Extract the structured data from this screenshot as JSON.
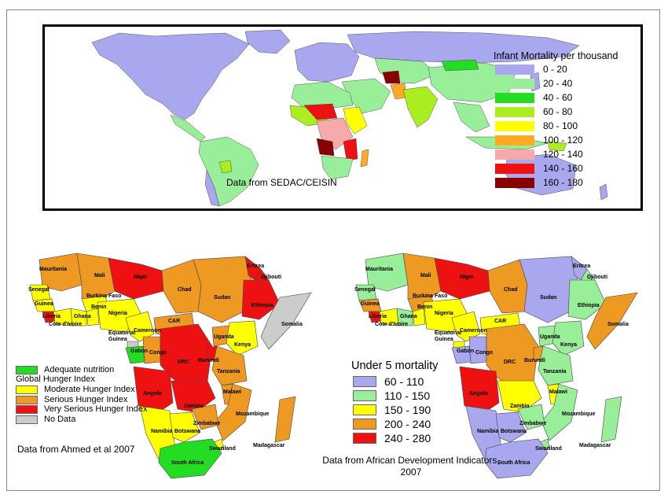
{
  "world_map": {
    "legend_title": "Infant Mortality per thousand",
    "legend": [
      {
        "label": "0 - 20",
        "color": "#a9a7ee"
      },
      {
        "label": "20 - 40",
        "color": "#99ee99"
      },
      {
        "label": "40 - 60",
        "color": "#22dd22"
      },
      {
        "label": "60 - 80",
        "color": "#aaee22"
      },
      {
        "label": "80 - 100",
        "color": "#ffff00"
      },
      {
        "label": "100 - 120",
        "color": "#ffaa22"
      },
      {
        "label": "120 - 140",
        "color": "#f7aaaa"
      },
      {
        "label": "140 - 160",
        "color": "#ee1111"
      },
      {
        "label": "160 - 180",
        "color": "#880000"
      }
    ],
    "source": "Data from SEDAC/CEISIN"
  },
  "hunger_map": {
    "legend": [
      {
        "label": "Adequate nutrition",
        "color": "#22dd22"
      },
      {
        "label": "Global Hunger Index",
        "color": null
      },
      {
        "label": "Moderate Hunger Index",
        "color": "#ffff00"
      },
      {
        "label": "Serious Hunger Index",
        "color": "#ee9922"
      },
      {
        "label": "Very Serious Hunger Index",
        "color": "#ee1111"
      },
      {
        "label": "No Data",
        "color": "#cccccc"
      }
    ],
    "source": "Data from Ahmed et al 2007",
    "countries": [
      {
        "name": "Mauritania",
        "color": "#ee9922"
      },
      {
        "name": "Mali",
        "color": "#ee9922"
      },
      {
        "name": "Niger",
        "color": "#ee1111"
      },
      {
        "name": "Chad",
        "color": "#ee9922"
      },
      {
        "name": "Sudan",
        "color": "#ee9922"
      },
      {
        "name": "Eritrea",
        "color": "#ee1111"
      },
      {
        "name": "Djibouti",
        "color": "#ee1111"
      },
      {
        "name": "Ethiopia",
        "color": "#ee1111"
      },
      {
        "name": "Somalia",
        "color": "#cccccc"
      },
      {
        "name": "Senegal",
        "color": "#ffff00"
      },
      {
        "name": "Guinea",
        "color": "#ffff00"
      },
      {
        "name": "Liberia",
        "color": "#ee1111"
      },
      {
        "name": "Burkina Faso",
        "color": "#ffff00"
      },
      {
        "name": "Benin",
        "color": "#ffff00"
      },
      {
        "name": "Ghana",
        "color": "#ffff00"
      },
      {
        "name": "Nigeria",
        "color": "#ffff00"
      },
      {
        "name": "Cote d'Ivoire",
        "color": "#ffff00"
      },
      {
        "name": "Cameroon",
        "color": "#ffff00"
      },
      {
        "name": "CAR",
        "color": "#ee9922"
      },
      {
        "name": "Equatorial Guinea",
        "color": "#cccccc"
      },
      {
        "name": "Gabon",
        "color": "#22dd22"
      },
      {
        "name": "Congo",
        "color": "#ee9922"
      },
      {
        "name": "DRC",
        "color": "#ee1111"
      },
      {
        "name": "Uganda",
        "color": "#ee9922"
      },
      {
        "name": "Kenya",
        "color": "#ffff00"
      },
      {
        "name": "Burundi",
        "color": "#ee1111"
      },
      {
        "name": "Tanzania",
        "color": "#ee9922"
      },
      {
        "name": "Angola",
        "color": "#ee1111"
      },
      {
        "name": "Zambia",
        "color": "#ee1111"
      },
      {
        "name": "Malawi",
        "color": "#ee9922"
      },
      {
        "name": "Mozambique",
        "color": "#ee9922"
      },
      {
        "name": "Zimbabwe",
        "color": "#ee9922"
      },
      {
        "name": "Madagascar",
        "color": "#ee9922"
      },
      {
        "name": "Namibia",
        "color": "#ffff00"
      },
      {
        "name": "Botswana",
        "color": "#ffff00"
      },
      {
        "name": "Swaziland",
        "color": "#ffff00"
      },
      {
        "name": "South Africa",
        "color": "#22dd22"
      }
    ]
  },
  "mortality_map": {
    "legend_title": "Under 5 mortality",
    "legend": [
      {
        "label": "60 - 110",
        "color": "#a9a7ee"
      },
      {
        "label": "110 - 150",
        "color": "#99ee99"
      },
      {
        "label": "150 - 190",
        "color": "#ffff00"
      },
      {
        "label": "200 - 240",
        "color": "#ee9922"
      },
      {
        "label": "240 - 280",
        "color": "#ee1111"
      }
    ],
    "source": "Data from African Development Indicators, 2007",
    "countries": [
      {
        "name": "Mauritania",
        "color": "#99ee99"
      },
      {
        "name": "Mali",
        "color": "#ee9922"
      },
      {
        "name": "Niger",
        "color": "#ee1111"
      },
      {
        "name": "Chad",
        "color": "#ee9922"
      },
      {
        "name": "Sudan",
        "color": "#a9a7ee"
      },
      {
        "name": "Eritrea",
        "color": "#a9a7ee"
      },
      {
        "name": "Djibouti",
        "color": "#99ee99"
      },
      {
        "name": "Ethiopia",
        "color": "#99ee99"
      },
      {
        "name": "Somalia",
        "color": "#ee9922"
      },
      {
        "name": "Senegal",
        "color": "#99ee99"
      },
      {
        "name": "Guinea",
        "color": "#ee9922"
      },
      {
        "name": "Liberia",
        "color": "#ee1111"
      },
      {
        "name": "Burkina Faso",
        "color": "#ee9922"
      },
      {
        "name": "Benin",
        "color": "#ffff00"
      },
      {
        "name": "Ghana",
        "color": "#99ee99"
      },
      {
        "name": "Nigeria",
        "color": "#ffff00"
      },
      {
        "name": "Cote d'Ivoire",
        "color": "#ffff00"
      },
      {
        "name": "Cameroon",
        "color": "#ffff00"
      },
      {
        "name": "CAR",
        "color": "#ffff00"
      },
      {
        "name": "Equatorial Guinea",
        "color": "#ffff00"
      },
      {
        "name": "Gabon",
        "color": "#a9a7ee"
      },
      {
        "name": "Congo",
        "color": "#a9a7ee"
      },
      {
        "name": "DRC",
        "color": "#ee9922"
      },
      {
        "name": "Uganda",
        "color": "#99ee99"
      },
      {
        "name": "Kenya",
        "color": "#99ee99"
      },
      {
        "name": "Burundi",
        "color": "#ee9922"
      },
      {
        "name": "Tanzania",
        "color": "#99ee99"
      },
      {
        "name": "Angola",
        "color": "#ee1111"
      },
      {
        "name": "Zambia",
        "color": "#ffff00"
      },
      {
        "name": "Malawi",
        "color": "#ffff00"
      },
      {
        "name": "Mozambique",
        "color": "#99ee99"
      },
      {
        "name": "Zimbabwe",
        "color": "#99ee99"
      },
      {
        "name": "Madagascar",
        "color": "#99ee99"
      },
      {
        "name": "Namibia",
        "color": "#a9a7ee"
      },
      {
        "name": "Botswana",
        "color": "#a9a7ee"
      },
      {
        "name": "Swaziland",
        "color": "#99ee99"
      },
      {
        "name": "South Africa",
        "color": "#a9a7ee"
      }
    ]
  }
}
